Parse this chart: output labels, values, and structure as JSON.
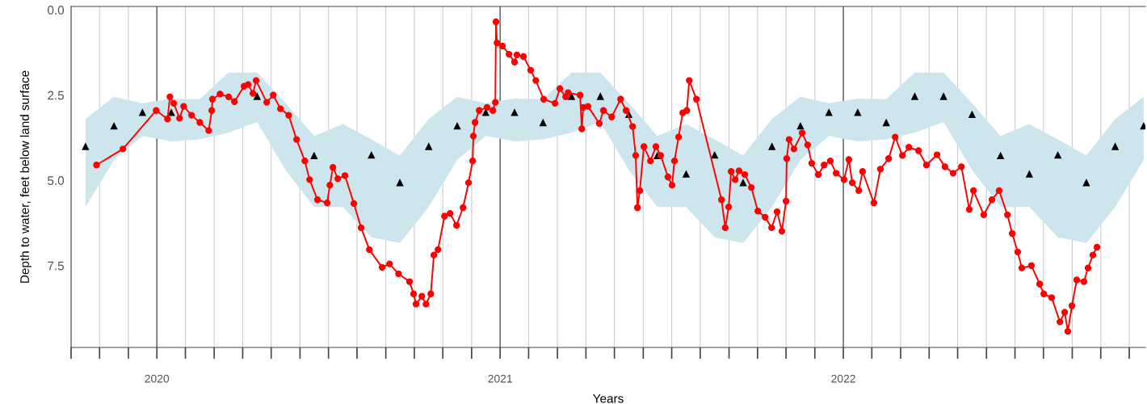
{
  "chart_data": {
    "type": "line",
    "xlabel": "Years",
    "ylabel": "Depth to water, feet below land surface",
    "xlim": [
      2019.75,
      2022.88
    ],
    "ylim": [
      9.9,
      -0.1
    ],
    "xticks": [
      {
        "value": 2019.75,
        "label": null
      },
      {
        "value": 2019.833,
        "label": null
      },
      {
        "value": 2019.917,
        "label": null
      },
      2020,
      {
        "value": 2020.083,
        "label": null
      },
      {
        "value": 2020.167,
        "label": null
      },
      {
        "value": 2020.25,
        "label": null
      },
      {
        "value": 2020.333,
        "label": null
      },
      {
        "value": 2020.417,
        "label": null
      },
      {
        "value": 2020.5,
        "label": null
      },
      {
        "value": 2020.583,
        "label": null
      },
      {
        "value": 2020.667,
        "label": null
      },
      {
        "value": 2020.75,
        "label": null
      },
      {
        "value": 2020.833,
        "label": null
      },
      {
        "value": 2020.917,
        "label": null
      },
      2021,
      {
        "value": 2021.083,
        "label": null
      },
      {
        "value": 2021.167,
        "label": null
      },
      {
        "value": 2021.25,
        "label": null
      },
      {
        "value": 2021.333,
        "label": null
      },
      {
        "value": 2021.417,
        "label": null
      },
      {
        "value": 2021.5,
        "label": null
      },
      {
        "value": 2021.583,
        "label": null
      },
      {
        "value": 2021.667,
        "label": null
      },
      {
        "value": 2021.75,
        "label": null
      },
      {
        "value": 2021.833,
        "label": null
      },
      {
        "value": 2021.917,
        "label": null
      },
      2022,
      {
        "value": 2022.083,
        "label": null
      },
      {
        "value": 2022.167,
        "label": null
      },
      {
        "value": 2022.25,
        "label": null
      },
      {
        "value": 2022.333,
        "label": null
      },
      {
        "value": 2022.417,
        "label": null
      },
      {
        "value": 2022.5,
        "label": null
      },
      {
        "value": 2022.583,
        "label": null
      },
      {
        "value": 2022.667,
        "label": null
      },
      {
        "value": 2022.75,
        "label": null
      },
      {
        "value": 2022.833,
        "label": null
      }
    ],
    "yticks": [
      {
        "value": 0,
        "label": "0.0"
      },
      2.5,
      {
        "value": 5,
        "label": "5.0"
      },
      7.5
    ],
    "grid": "x",
    "series": [
      {
        "type": "scatter",
        "marker": "triangle",
        "color": "#000000",
        "x": [
          2019.792,
          2019.875,
          2019.958,
          2020.042,
          2020.125,
          2020.208,
          2020.292,
          2020.375,
          2020.458,
          2020.542,
          2020.625,
          2020.708,
          2020.792,
          2020.875,
          2020.958,
          2021.042,
          2021.125,
          2021.208,
          2021.292,
          2021.375,
          2021.458,
          2021.542,
          2021.625,
          2021.708,
          2021.792,
          2021.875,
          2021.958,
          2022.042,
          2022.125,
          2022.208,
          2022.292,
          2022.375,
          2022.458,
          2022.542,
          2022.625,
          2022.708,
          2022.792,
          2022.875
        ],
        "values": [
          4.0,
          3.4,
          3.0,
          3.0,
          null,
          null,
          2.53,
          null,
          4.27,
          null,
          4.25,
          5.06,
          4.0,
          3.4,
          3.0,
          3.0,
          3.3,
          2.53,
          2.53,
          3.06,
          4.27,
          4.81,
          4.25,
          5.06,
          4.0,
          3.4,
          3.0,
          3.0,
          3.3,
          2.53,
          2.53,
          3.06,
          4.27,
          4.81,
          4.25,
          5.06,
          4.0,
          3.4
        ],
        "upper": [
          3.2,
          2.55,
          2.74,
          2.6,
          2.62,
          1.84,
          1.84,
          2.74,
          3.7,
          3.35,
          3.8,
          4.27,
          3.2,
          2.55,
          2.74,
          2.6,
          2.62,
          1.84,
          1.84,
          2.74,
          3.7,
          3.35,
          3.8,
          4.27,
          3.2,
          2.55,
          2.74,
          2.6,
          2.62,
          1.84,
          1.84,
          2.74,
          3.7,
          3.35,
          3.8,
          4.27,
          3.2,
          2.55
        ],
        "lower": [
          5.78,
          4.4,
          3.7,
          3.86,
          3.8,
          3.6,
          3.29,
          4.7,
          5.78,
          5.78,
          6.67,
          6.84,
          5.78,
          4.4,
          3.7,
          3.86,
          3.8,
          3.6,
          3.29,
          4.7,
          5.78,
          5.78,
          6.67,
          6.84,
          5.78,
          4.4,
          3.7,
          3.86,
          3.8,
          3.6,
          3.29,
          4.7,
          5.78,
          5.78,
          6.67,
          6.84,
          5.78,
          4.4
        ]
      },
      {
        "marker": "circle",
        "line_style": "solid",
        "color": "#ff0000",
        "x": [
          2019.824,
          2019.901,
          2019.998,
          2020.031,
          2020.038,
          2020.049,
          2020.066,
          2020.078,
          2020.101,
          2020.125,
          2020.151,
          2020.16,
          2020.162,
          2020.184,
          2020.209,
          2020.226,
          2020.254,
          2020.266,
          2020.28,
          2020.289,
          2020.32,
          2020.339,
          2020.36,
          2020.384,
          2020.407,
          2020.431,
          2020.445,
          2020.468,
          2020.496,
          2020.504,
          2020.513,
          2020.527,
          2020.548,
          2020.574,
          2020.595,
          2020.619,
          2020.656,
          2020.678,
          2020.704,
          2020.736,
          2020.748,
          2020.755,
          2020.772,
          2020.784,
          2020.798,
          2020.807,
          2020.819,
          2020.838,
          2020.854,
          2020.873,
          2020.892,
          2020.908,
          2020.92,
          2020.922,
          2020.927,
          2020.939,
          2020.962,
          2020.979,
          2020.986,
          2020.988,
          2020.991,
          2021.007,
          2021.026,
          2021.042,
          2021.049,
          2021.068,
          2021.089,
          2021.104,
          2021.127,
          2021.16,
          2021.174,
          2021.191,
          2021.198,
          2021.233,
          2021.238,
          2021.242,
          2021.256,
          2021.289,
          2021.301,
          2021.325,
          2021.351,
          2021.367,
          2021.386,
          2021.395,
          2021.4,
          2021.407,
          2021.419,
          2021.438,
          2021.454,
          2021.468,
          2021.489,
          2021.501,
          2021.508,
          2021.52,
          2021.532,
          2021.544,
          2021.551,
          2021.572,
          2021.645,
          2021.656,
          2021.666,
          2021.673,
          2021.685,
          2021.696,
          2021.713,
          2021.732,
          2021.751,
          2021.772,
          2021.791,
          2021.807,
          2021.821,
          2021.833,
          2021.835,
          2021.842,
          2021.856,
          2021.88,
          2021.896,
          2021.908,
          2021.927,
          2021.944,
          2021.962,
          2021.979,
          2022.002,
          2022.016,
          2022.026,
          2022.045,
          2022.056,
          2022.089,
          2022.108,
          2022.132,
          2022.151,
          2022.172,
          2022.191,
          2022.219,
          2022.242,
          2022.273,
          2022.296,
          2022.32,
          2022.344,
          2022.367,
          2022.379,
          2022.409,
          2022.433,
          2022.454,
          2022.478,
          2022.492,
          2022.508,
          2022.52,
          2022.548,
          2022.572,
          2022.584,
          2022.607,
          2022.631,
          2022.645,
          2022.654,
          2022.666,
          2022.68,
          2022.701,
          2022.713,
          2022.727,
          2022.739
        ],
        "values": [
          4.55,
          4.08,
          2.95,
          3.2,
          2.55,
          2.74,
          3.18,
          2.83,
          3.09,
          3.3,
          3.54,
          2.95,
          2.62,
          2.47,
          2.55,
          2.69,
          2.24,
          2.19,
          2.45,
          2.07,
          2.71,
          2.5,
          2.9,
          3.09,
          3.8,
          4.43,
          4.98,
          5.57,
          5.66,
          5.14,
          4.62,
          4.95,
          4.86,
          5.68,
          6.39,
          7.03,
          7.55,
          7.45,
          7.74,
          7.97,
          8.33,
          8.63,
          8.4,
          8.63,
          8.33,
          7.19,
          7.03,
          6.05,
          5.97,
          6.32,
          5.8,
          5.07,
          4.43,
          3.7,
          3.3,
          2.95,
          2.86,
          2.95,
          2.71,
          0.35,
          0.97,
          1.06,
          1.3,
          1.53,
          1.32,
          1.37,
          1.77,
          2.07,
          2.62,
          2.74,
          2.31,
          2.55,
          2.43,
          2.5,
          3.49,
          2.86,
          2.83,
          3.33,
          2.95,
          3.14,
          2.62,
          2.95,
          3.42,
          4.27,
          5.8,
          5.3,
          4.01,
          4.43,
          4.01,
          4.27,
          4.9,
          5.14,
          4.43,
          3.73,
          3.02,
          2.95,
          2.07,
          2.62,
          5.57,
          6.39,
          5.78,
          4.74,
          4.98,
          4.72,
          4.83,
          5.21,
          5.9,
          6.08,
          6.39,
          5.92,
          6.49,
          5.61,
          4.36,
          3.8,
          4.08,
          3.61,
          3.96,
          4.5,
          4.83,
          4.55,
          4.43,
          4.79,
          4.98,
          4.39,
          5.07,
          5.3,
          4.74,
          5.66,
          4.67,
          4.36,
          3.73,
          4.27,
          4.03,
          4.13,
          4.55,
          4.25,
          4.6,
          4.79,
          4.6,
          5.85,
          5.3,
          6.01,
          5.57,
          5.3,
          6.01,
          6.56,
          7.1,
          7.57,
          7.5,
          8.04,
          8.33,
          8.44,
          9.15,
          8.87,
          9.43,
          8.68,
          7.92,
          7.97,
          7.57,
          7.19,
          6.96
        ]
      }
    ]
  }
}
